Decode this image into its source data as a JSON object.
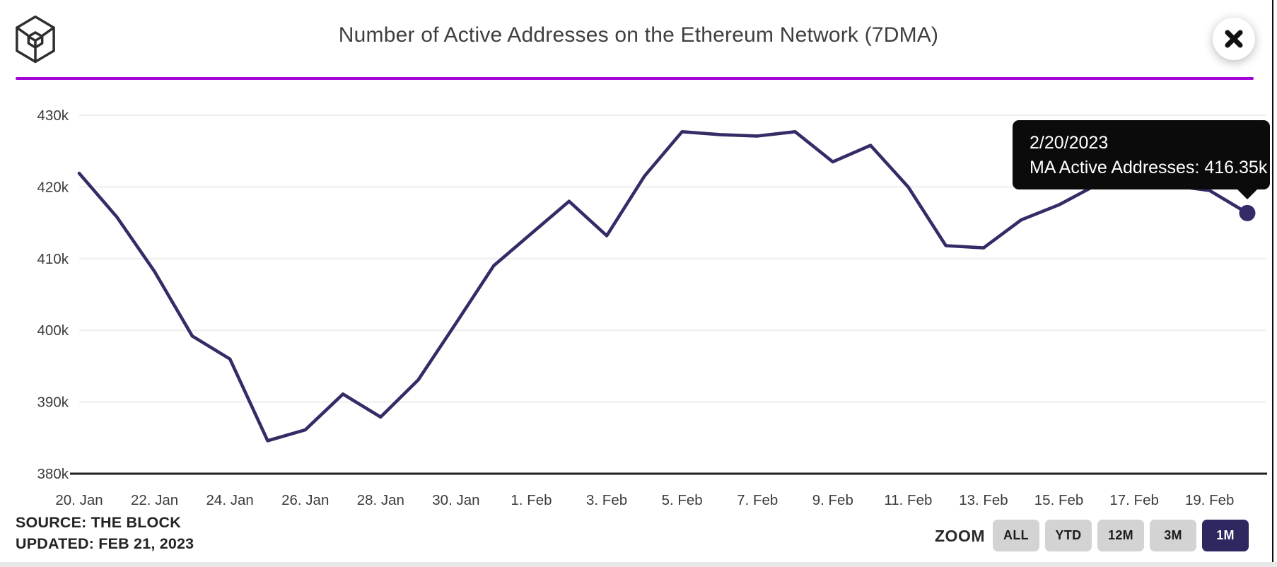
{
  "header": {
    "title": "Number of Active Addresses on the Ethereum Network (7DMA)",
    "brand": "The Block"
  },
  "tooltip": {
    "date": "2/20/2023",
    "series_label": "MA Active Addresses",
    "value_text": "416.35k"
  },
  "footer": {
    "source": "SOURCE: THE BLOCK",
    "updated": "UPDATED: FEB 21, 2023",
    "zoom_label": "ZOOM",
    "zoom_buttons": [
      {
        "label": "ALL",
        "active": false
      },
      {
        "label": "YTD",
        "active": false
      },
      {
        "label": "12M",
        "active": false
      },
      {
        "label": "3M",
        "active": false
      },
      {
        "label": "1M",
        "active": true
      }
    ]
  },
  "colors": {
    "accent_divider": "#a303d6",
    "line": "#342c66",
    "active_button": "#2d2960",
    "tooltip_bg": "#0b0b0b"
  },
  "chart_data": {
    "type": "line",
    "title": "Number of Active Addresses on the Ethereum Network (7DMA)",
    "unit": "thousands of addresses",
    "grid": "horizontal",
    "legend_position": "none",
    "ylim_k": [
      380,
      430
    ],
    "y_tick_labels": [
      "430k",
      "420k",
      "410k",
      "400k",
      "390k",
      "380k"
    ],
    "y_tick_values": [
      430,
      420,
      410,
      400,
      390,
      380
    ],
    "x_tick_labels": [
      "20. Jan",
      "22. Jan",
      "24. Jan",
      "26. Jan",
      "28. Jan",
      "30. Jan",
      "1. Feb",
      "3. Feb",
      "5. Feb",
      "7. Feb",
      "9. Feb",
      "11. Feb",
      "13. Feb",
      "15. Feb",
      "17. Feb",
      "19. Feb"
    ],
    "series": [
      {
        "name": "MA Active Addresses",
        "dates": [
          "20. Jan",
          "21. Jan",
          "22. Jan",
          "23. Jan",
          "24. Jan",
          "25. Jan",
          "26. Jan",
          "27. Jan",
          "28. Jan",
          "29. Jan",
          "30. Jan",
          "31. Jan",
          "1. Feb",
          "2. Feb",
          "3. Feb",
          "4. Feb",
          "5. Feb",
          "6. Feb",
          "7. Feb",
          "8. Feb",
          "9. Feb",
          "10. Feb",
          "11. Feb",
          "12. Feb",
          "13. Feb",
          "14. Feb",
          "15. Feb",
          "16. Feb",
          "17. Feb",
          "18. Feb",
          "19. Feb",
          "20. Feb"
        ],
        "values_k": [
          421.9,
          415.8,
          408.2,
          399.2,
          396.0,
          384.6,
          386.1,
          391.1,
          387.9,
          393.1,
          401.0,
          409.0,
          413.5,
          418.0,
          413.2,
          421.5,
          427.7,
          427.3,
          427.1,
          427.7,
          423.5,
          425.8,
          420.0,
          411.8,
          411.5,
          415.4,
          417.5,
          420.3,
          420.5,
          420.2,
          419.5,
          416.35
        ]
      }
    ],
    "highlight_point": {
      "date": "2/20/2023",
      "value_k": 416.35
    }
  }
}
